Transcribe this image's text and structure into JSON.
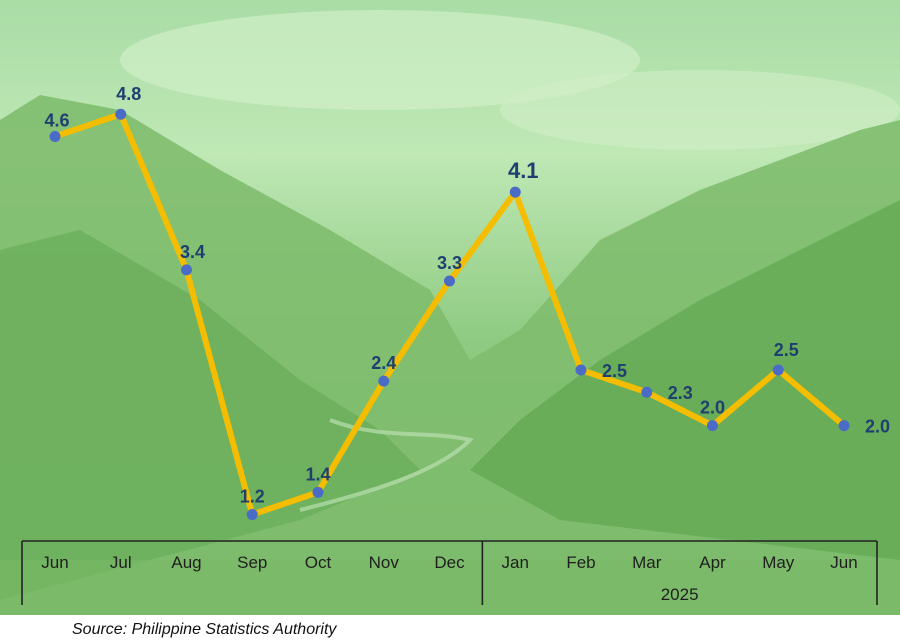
{
  "chart_data": {
    "type": "line",
    "categories": [
      "Jun",
      "Jul",
      "Aug",
      "Sep",
      "Oct",
      "Nov",
      "Dec",
      "Jan",
      "Feb",
      "Mar",
      "Apr",
      "May",
      "Jun"
    ],
    "values": [
      4.6,
      4.8,
      3.4,
      1.2,
      1.4,
      2.4,
      3.3,
      4.1,
      2.5,
      2.3,
      2.0,
      2.5,
      2.0
    ],
    "labels": [
      "4.6",
      "4.8",
      "3.4",
      "1.2",
      "1.4",
      "2.4",
      "3.3",
      "4.1",
      "2.5",
      "2.3",
      "2.0",
      "2.5",
      "2.0"
    ],
    "highlight_index": 7,
    "year_groups": [
      {
        "label": "",
        "start": 0,
        "end": 6
      },
      {
        "label": "2025",
        "start": 7,
        "end": 12
      }
    ],
    "ylim": [
      0,
      5
    ],
    "grid": false,
    "colors": {
      "line": "#f5bd00",
      "marker": "#4a6cc6",
      "label": "#1f3f6e"
    }
  },
  "source": "Source: Philippine Statistics Authority"
}
